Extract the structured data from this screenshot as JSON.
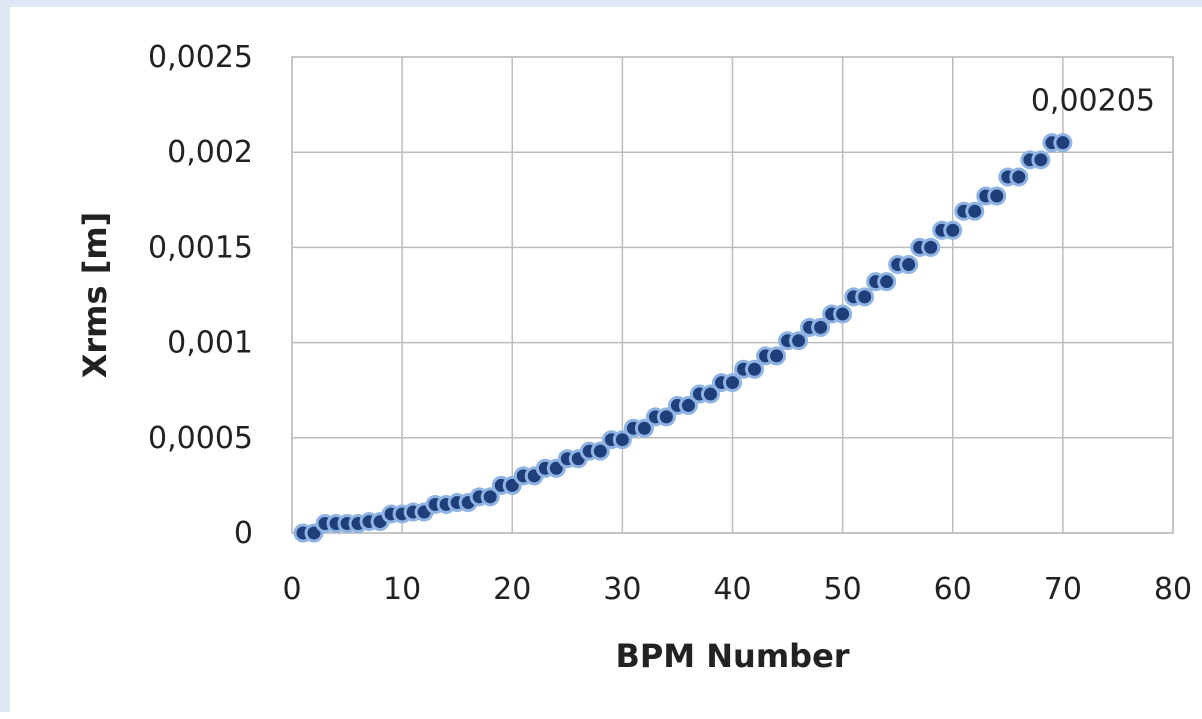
{
  "chart_data": {
    "type": "scatter",
    "title": "",
    "xlabel": "BPM Number",
    "ylabel": "Xrms [m]",
    "xlim": [
      0,
      80
    ],
    "ylim": [
      0,
      0.0025
    ],
    "x_ticks": [
      "0",
      "10",
      "20",
      "30",
      "40",
      "50",
      "60",
      "70",
      "80"
    ],
    "y_ticks": [
      "0",
      "0,0005",
      "0,001",
      "0,0015",
      "0,002",
      "0,0025"
    ],
    "grid": true,
    "legend": "none",
    "marker_color": "#1f3f7a",
    "marker_edge_color": "#8fb4e3",
    "series": [
      {
        "x": [
          1,
          2,
          3,
          4,
          5,
          6,
          7,
          8,
          9,
          10,
          11,
          12,
          13,
          14,
          15,
          16,
          17,
          18,
          19,
          20,
          21,
          22,
          23,
          24,
          25,
          26,
          27,
          28,
          29,
          30,
          31,
          32,
          33,
          34,
          35,
          36,
          37,
          38,
          39,
          40,
          41,
          42,
          43,
          44,
          45,
          46,
          47,
          48,
          49,
          50,
          51,
          52,
          53,
          54,
          55,
          56,
          57,
          58,
          59,
          60,
          61,
          62,
          63,
          64,
          65,
          66,
          67,
          68,
          69,
          70
        ],
        "y": [
          0.0,
          0.0,
          5e-05,
          5e-05,
          5e-05,
          5e-05,
          6e-05,
          6e-05,
          0.0001,
          0.0001,
          0.00011,
          0.00011,
          0.00015,
          0.00015,
          0.00016,
          0.00016,
          0.00019,
          0.00019,
          0.00025,
          0.00025,
          0.0003,
          0.0003,
          0.00034,
          0.00034,
          0.00039,
          0.00039,
          0.00043,
          0.00043,
          0.00049,
          0.00049,
          0.00055,
          0.00055,
          0.00061,
          0.00061,
          0.00067,
          0.00067,
          0.00073,
          0.00073,
          0.00079,
          0.00079,
          0.00086,
          0.00086,
          0.00093,
          0.00093,
          0.00101,
          0.00101,
          0.00108,
          0.00108,
          0.00115,
          0.00115,
          0.00124,
          0.00124,
          0.00132,
          0.00132,
          0.00141,
          0.00141,
          0.0015,
          0.0015,
          0.00159,
          0.00159,
          0.00169,
          0.00169,
          0.00177,
          0.00177,
          0.00187,
          0.00187,
          0.00196,
          0.00196,
          0.00205,
          0.00205
        ]
      }
    ],
    "annotations": [
      {
        "x": 70,
        "y": 0.00205,
        "text": "0,00205"
      }
    ]
  }
}
